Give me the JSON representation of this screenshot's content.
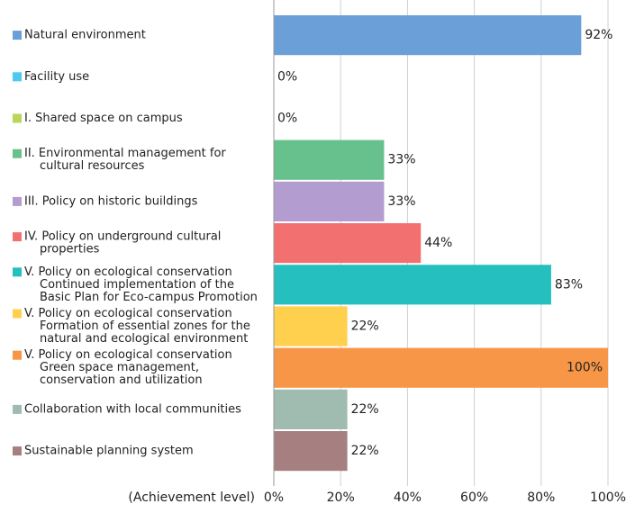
{
  "chart_data": {
    "type": "barh",
    "categories": [
      [
        "Natural environment"
      ],
      [
        "Facility use"
      ],
      [
        "I. Shared space on campus"
      ],
      [
        "II. Environmental management for",
        "cultural resources"
      ],
      [
        "III. Policy on historic buildings"
      ],
      [
        "IV. Policy on underground cultural",
        "properties"
      ],
      [
        "V. Policy on ecological conservation",
        "Continued implementation of the",
        "Basic Plan for Eco-campus Promotion"
      ],
      [
        "V. Policy on ecological conservation",
        "Formation of essential zones for the",
        "natural and ecological environment"
      ],
      [
        "V. Policy on ecological conservation",
        "Green space management,",
        "conservation and utilization"
      ],
      [
        "Collaboration with local communities"
      ],
      [
        "Sustainable planning system"
      ]
    ],
    "values": [
      92,
      0,
      0,
      33,
      33,
      44,
      83,
      22,
      100,
      22,
      22
    ],
    "value_labels": [
      "92%",
      "0%",
      "0%",
      "33%",
      "33%",
      "44%",
      "83%",
      "22%",
      "100%",
      "22%",
      "22%"
    ],
    "colors": [
      "#6a9fd8",
      "#4dc8ee",
      "#b8d65a",
      "#66c18c",
      "#b39ccf",
      "#f27070",
      "#26bfbf",
      "#ffd04d",
      "#f79646",
      "#a0bcb0",
      "#a67f80"
    ],
    "xlabel": "(Achievement level)",
    "xlim": [
      0,
      100
    ],
    "xticks": [
      {
        "value": 0,
        "label": "0%"
      },
      {
        "value": 20,
        "label": "20%"
      },
      {
        "value": 40,
        "label": "40%"
      },
      {
        "value": 60,
        "label": "60%"
      },
      {
        "value": 80,
        "label": "80%"
      },
      {
        "value": 100,
        "label": "100%"
      }
    ],
    "grid": true
  }
}
